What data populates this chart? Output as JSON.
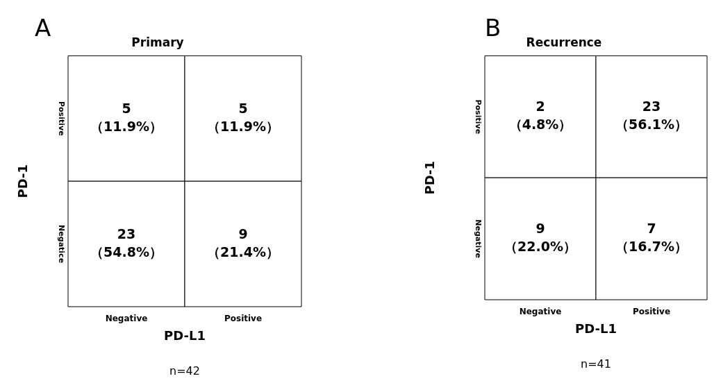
{
  "chart_data": [
    {
      "type": "heatmap",
      "title": "Primary",
      "xlabel": "PD-L1",
      "ylabel": "PD-1",
      "categories": [
        "Negative",
        "Positive"
      ],
      "y_categories": [
        "Positive",
        "Negatice"
      ],
      "cells": [
        [
          5,
          5
        ],
        [
          23,
          9
        ]
      ],
      "data_labels": true,
      "annotations": [
        "A",
        "n=42",
        "（11.9%）",
        "（11.9%）",
        "（54.8%）",
        "（21.4%）"
      ]
    },
    {
      "type": "heatmap",
      "title": "Recurrence",
      "xlabel": "PD-L1",
      "ylabel": "PD-1",
      "categories": [
        "Negative",
        "Positive"
      ],
      "y_categories": [
        "Positive",
        "Negative"
      ],
      "cells": [
        [
          2,
          23
        ],
        [
          9,
          7
        ]
      ],
      "data_labels": true,
      "annotations": [
        "B",
        "n=41",
        "（4.8%）",
        "（56.1%）",
        "（22.0%）",
        "（16.7%）"
      ]
    }
  ]
}
